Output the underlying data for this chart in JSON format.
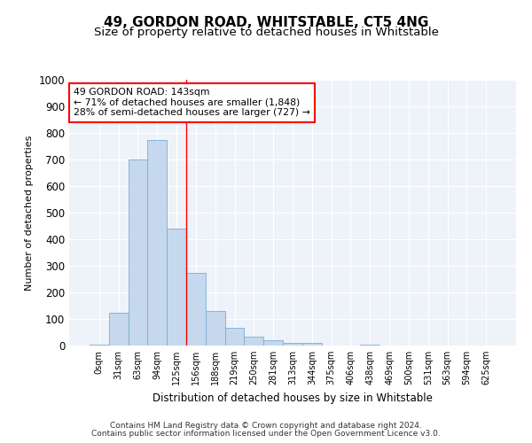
{
  "title1": "49, GORDON ROAD, WHITSTABLE, CT5 4NG",
  "title2": "Size of property relative to detached houses in Whitstable",
  "xlabel": "Distribution of detached houses by size in Whitstable",
  "ylabel": "Number of detached properties",
  "categories": [
    "0sqm",
    "31sqm",
    "63sqm",
    "94sqm",
    "125sqm",
    "156sqm",
    "188sqm",
    "219sqm",
    "250sqm",
    "281sqm",
    "313sqm",
    "344sqm",
    "375sqm",
    "406sqm",
    "438sqm",
    "469sqm",
    "500sqm",
    "531sqm",
    "563sqm",
    "594sqm",
    "625sqm"
  ],
  "values": [
    5,
    125,
    700,
    775,
    440,
    275,
    130,
    68,
    35,
    20,
    10,
    10,
    0,
    0,
    5,
    0,
    0,
    0,
    0,
    0,
    0
  ],
  "bar_color": "#c5d8ed",
  "bar_edge_color": "#7aadd4",
  "vline_x_idx": 4.5,
  "vline_color": "red",
  "annotation_line1": "49 GORDON ROAD: 143sqm",
  "annotation_line2": "← 71% of detached houses are smaller (1,848)",
  "annotation_line3": "28% of semi-detached houses are larger (727) →",
  "annotation_box_color": "white",
  "annotation_box_edge_color": "red",
  "ylim": [
    0,
    1000
  ],
  "yticks": [
    0,
    100,
    200,
    300,
    400,
    500,
    600,
    700,
    800,
    900,
    1000
  ],
  "footer1": "Contains HM Land Registry data © Crown copyright and database right 2024.",
  "footer2": "Contains public sector information licensed under the Open Government Licence v3.0.",
  "title1_fontsize": 11,
  "title2_fontsize": 9.5,
  "bg_color": "#eef3f9"
}
